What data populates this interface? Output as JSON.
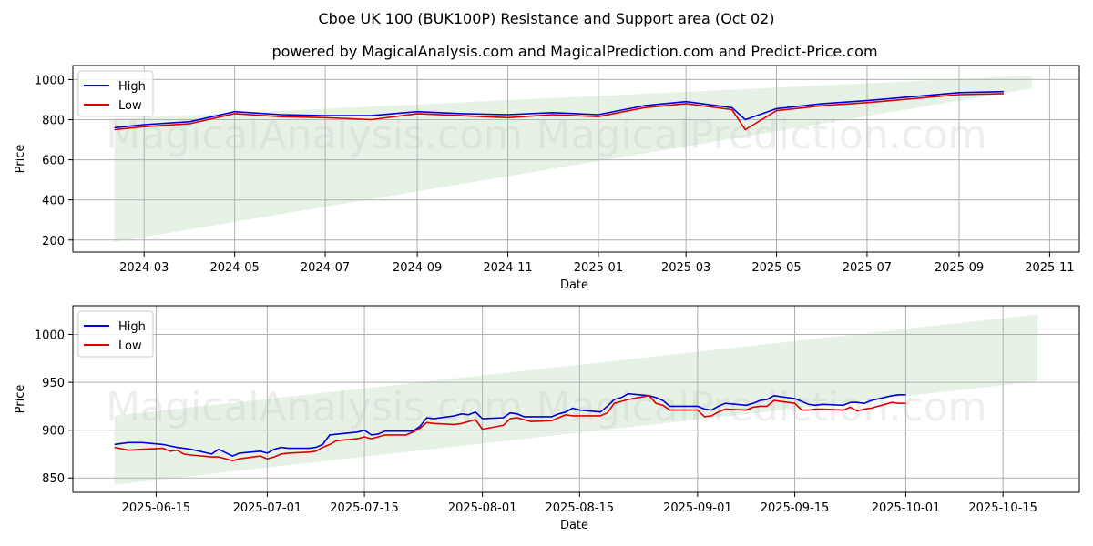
{
  "title": "Cboe UK 100 (BUK100P) Resistance and Support area (Oct 02)",
  "subtitle": "powered by MagicalAnalysis.com and MagicalPrediction.com and Predict-Price.com",
  "watermarks": [
    "MagicalAnalysis.com",
    "MagicalPrediction.com"
  ],
  "colors": {
    "high": "#0000dd",
    "low": "#dd0000",
    "band": "#e6f2e6"
  },
  "chart_data": [
    {
      "type": "line",
      "xlabel": "Date",
      "ylabel": "Price",
      "grid": true,
      "legend": "top-left",
      "x_ticks": [
        "2024-03",
        "2024-05",
        "2024-07",
        "2024-09",
        "2024-11",
        "2025-01",
        "2025-03",
        "2025-05",
        "2025-07",
        "2025-09",
        "2025-11"
      ],
      "y_ticks": [
        "200",
        "400",
        "600",
        "800",
        "1000"
      ],
      "ylim": [
        140,
        1070
      ],
      "band": {
        "x_start": "2024-02-10",
        "x_end": "2025-10-20",
        "lower": [
          190,
          955
        ],
        "upper": [
          805,
          1020
        ]
      },
      "series": [
        {
          "name": "High",
          "points": [
            [
              "2024-02-10",
              760
            ],
            [
              "2024-03-01",
              775
            ],
            [
              "2024-04-01",
              790
            ],
            [
              "2024-05-01",
              840
            ],
            [
              "2024-06-01",
              825
            ],
            [
              "2024-07-01",
              820
            ],
            [
              "2024-08-01",
              820
            ],
            [
              "2024-09-01",
              840
            ],
            [
              "2024-10-01",
              830
            ],
            [
              "2024-11-01",
              825
            ],
            [
              "2024-12-01",
              835
            ],
            [
              "2025-01-01",
              825
            ],
            [
              "2025-02-01",
              870
            ],
            [
              "2025-03-01",
              890
            ],
            [
              "2025-04-01",
              860
            ],
            [
              "2025-04-10",
              800
            ],
            [
              "2025-05-01",
              855
            ],
            [
              "2025-06-01",
              880
            ],
            [
              "2025-07-01",
              895
            ],
            [
              "2025-08-01",
              915
            ],
            [
              "2025-09-01",
              935
            ],
            [
              "2025-10-01",
              940
            ]
          ]
        },
        {
          "name": "Low",
          "points": [
            [
              "2024-02-10",
              750
            ],
            [
              "2024-03-01",
              765
            ],
            [
              "2024-04-01",
              780
            ],
            [
              "2024-05-01",
              830
            ],
            [
              "2024-06-01",
              815
            ],
            [
              "2024-07-01",
              810
            ],
            [
              "2024-08-01",
              800
            ],
            [
              "2024-09-01",
              830
            ],
            [
              "2024-10-01",
              820
            ],
            [
              "2024-11-01",
              810
            ],
            [
              "2024-12-01",
              825
            ],
            [
              "2025-01-01",
              815
            ],
            [
              "2025-02-01",
              860
            ],
            [
              "2025-03-01",
              880
            ],
            [
              "2025-04-01",
              850
            ],
            [
              "2025-04-10",
              750
            ],
            [
              "2025-05-01",
              845
            ],
            [
              "2025-06-01",
              870
            ],
            [
              "2025-07-01",
              885
            ],
            [
              "2025-08-01",
              905
            ],
            [
              "2025-09-01",
              925
            ],
            [
              "2025-10-01",
              930
            ]
          ]
        }
      ]
    },
    {
      "type": "line",
      "xlabel": "Date",
      "ylabel": "Price",
      "grid": true,
      "legend": "top-left",
      "x_ticks": [
        "2025-06-15",
        "2025-07-01",
        "2025-07-15",
        "2025-08-01",
        "2025-08-15",
        "2025-09-01",
        "2025-09-15",
        "2025-10-01",
        "2025-10-15"
      ],
      "y_ticks": [
        "850",
        "900",
        "950",
        "1000"
      ],
      "ylim": [
        835,
        1030
      ],
      "band": {
        "x_start": "2025-06-09",
        "x_end": "2025-10-20",
        "lower": [
          843,
          951
        ],
        "upper": [
          915,
          1021
        ]
      },
      "series": [
        {
          "name": "High",
          "points": [
            [
              "2025-06-09",
              885
            ],
            [
              "2025-06-11",
              887
            ],
            [
              "2025-06-13",
              887
            ],
            [
              "2025-06-16",
              885
            ],
            [
              "2025-06-18",
              882
            ],
            [
              "2025-06-20",
              880
            ],
            [
              "2025-06-23",
              875
            ],
            [
              "2025-06-24",
              880
            ],
            [
              "2025-06-26",
              873
            ],
            [
              "2025-06-27",
              876
            ],
            [
              "2025-06-30",
              878
            ],
            [
              "2025-07-01",
              876
            ],
            [
              "2025-07-02",
              880
            ],
            [
              "2025-07-03",
              882
            ],
            [
              "2025-07-04",
              881
            ],
            [
              "2025-07-07",
              881
            ],
            [
              "2025-07-08",
              882
            ],
            [
              "2025-07-09",
              885
            ],
            [
              "2025-07-10",
              895
            ],
            [
              "2025-07-14",
              898
            ],
            [
              "2025-07-15",
              900
            ],
            [
              "2025-07-16",
              895
            ],
            [
              "2025-07-17",
              896
            ],
            [
              "2025-07-18",
              899
            ],
            [
              "2025-07-21",
              899
            ],
            [
              "2025-07-22",
              899
            ],
            [
              "2025-07-23",
              904
            ],
            [
              "2025-07-24",
              913
            ],
            [
              "2025-07-25",
              912
            ],
            [
              "2025-07-28",
              915
            ],
            [
              "2025-07-29",
              917
            ],
            [
              "2025-07-30",
              916
            ],
            [
              "2025-07-31",
              919
            ],
            [
              "2025-08-01",
              912
            ],
            [
              "2025-08-04",
              913
            ],
            [
              "2025-08-05",
              918
            ],
            [
              "2025-08-06",
              917
            ],
            [
              "2025-08-07",
              914
            ],
            [
              "2025-08-08",
              914
            ],
            [
              "2025-08-11",
              914
            ],
            [
              "2025-08-12",
              917
            ],
            [
              "2025-08-13",
              919
            ],
            [
              "2025-08-14",
              923
            ],
            [
              "2025-08-15",
              921
            ],
            [
              "2025-08-18",
              919
            ],
            [
              "2025-08-19",
              925
            ],
            [
              "2025-08-20",
              932
            ],
            [
              "2025-08-21",
              934
            ],
            [
              "2025-08-22",
              938
            ],
            [
              "2025-08-25",
              936
            ],
            [
              "2025-08-26",
              934
            ],
            [
              "2025-08-27",
              931
            ],
            [
              "2025-08-28",
              925
            ],
            [
              "2025-08-29",
              925
            ],
            [
              "2025-09-01",
              925
            ],
            [
              "2025-09-02",
              922
            ],
            [
              "2025-09-03",
              921
            ],
            [
              "2025-09-04",
              925
            ],
            [
              "2025-09-05",
              928
            ],
            [
              "2025-09-08",
              926
            ],
            [
              "2025-09-09",
              928
            ],
            [
              "2025-09-10",
              931
            ],
            [
              "2025-09-11",
              932
            ],
            [
              "2025-09-12",
              936
            ],
            [
              "2025-09-15",
              933
            ],
            [
              "2025-09-16",
              930
            ],
            [
              "2025-09-17",
              927
            ],
            [
              "2025-09-18",
              926
            ],
            [
              "2025-09-19",
              927
            ],
            [
              "2025-09-22",
              926
            ],
            [
              "2025-09-23",
              929
            ],
            [
              "2025-09-24",
              929
            ],
            [
              "2025-09-25",
              928
            ],
            [
              "2025-09-26",
              931
            ],
            [
              "2025-09-29",
              936
            ],
            [
              "2025-09-30",
              937
            ],
            [
              "2025-10-01",
              937
            ]
          ]
        },
        {
          "name": "Low",
          "points": [
            [
              "2025-06-09",
              882
            ],
            [
              "2025-06-11",
              879
            ],
            [
              "2025-06-13",
              880
            ],
            [
              "2025-06-16",
              881
            ],
            [
              "2025-06-17",
              878
            ],
            [
              "2025-06-18",
              879
            ],
            [
              "2025-06-19",
              875
            ],
            [
              "2025-06-20",
              874
            ],
            [
              "2025-06-23",
              872
            ],
            [
              "2025-06-24",
              872
            ],
            [
              "2025-06-25",
              870
            ],
            [
              "2025-06-26",
              868
            ],
            [
              "2025-06-27",
              870
            ],
            [
              "2025-06-30",
              873
            ],
            [
              "2025-07-01",
              870
            ],
            [
              "2025-07-02",
              872
            ],
            [
              "2025-07-03",
              875
            ],
            [
              "2025-07-04",
              876
            ],
            [
              "2025-07-07",
              877
            ],
            [
              "2025-07-08",
              878
            ],
            [
              "2025-07-09",
              882
            ],
            [
              "2025-07-10",
              885
            ],
            [
              "2025-07-11",
              889
            ],
            [
              "2025-07-14",
              891
            ],
            [
              "2025-07-15",
              893
            ],
            [
              "2025-07-16",
              891
            ],
            [
              "2025-07-17",
              893
            ],
            [
              "2025-07-18",
              895
            ],
            [
              "2025-07-21",
              895
            ],
            [
              "2025-07-22",
              898
            ],
            [
              "2025-07-23",
              902
            ],
            [
              "2025-07-24",
              908
            ],
            [
              "2025-07-25",
              907
            ],
            [
              "2025-07-28",
              906
            ],
            [
              "2025-07-29",
              907
            ],
            [
              "2025-07-30",
              909
            ],
            [
              "2025-07-31",
              911
            ],
            [
              "2025-08-01",
              901
            ],
            [
              "2025-08-04",
              905
            ],
            [
              "2025-08-05",
              912
            ],
            [
              "2025-08-06",
              913
            ],
            [
              "2025-08-07",
              911
            ],
            [
              "2025-08-08",
              909
            ],
            [
              "2025-08-11",
              910
            ],
            [
              "2025-08-12",
              913
            ],
            [
              "2025-08-13",
              916
            ],
            [
              "2025-08-14",
              915
            ],
            [
              "2025-08-15",
              915
            ],
            [
              "2025-08-18",
              915
            ],
            [
              "2025-08-19",
              918
            ],
            [
              "2025-08-20",
              928
            ],
            [
              "2025-08-21",
              930
            ],
            [
              "2025-08-22",
              932
            ],
            [
              "2025-08-25",
              936
            ],
            [
              "2025-08-26",
              928
            ],
            [
              "2025-08-27",
              926
            ],
            [
              "2025-08-28",
              921
            ],
            [
              "2025-08-29",
              921
            ],
            [
              "2025-09-01",
              921
            ],
            [
              "2025-09-02",
              914
            ],
            [
              "2025-09-03",
              915
            ],
            [
              "2025-09-04",
              919
            ],
            [
              "2025-09-05",
              922
            ],
            [
              "2025-09-08",
              921
            ],
            [
              "2025-09-09",
              924
            ],
            [
              "2025-09-10",
              925
            ],
            [
              "2025-09-11",
              925
            ],
            [
              "2025-09-12",
              931
            ],
            [
              "2025-09-15",
              928
            ],
            [
              "2025-09-16",
              921
            ],
            [
              "2025-09-17",
              921
            ],
            [
              "2025-09-18",
              922
            ],
            [
              "2025-09-19",
              922
            ],
            [
              "2025-09-22",
              921
            ],
            [
              "2025-09-23",
              924
            ],
            [
              "2025-09-24",
              920
            ],
            [
              "2025-09-25",
              922
            ],
            [
              "2025-09-26",
              923
            ],
            [
              "2025-09-29",
              929
            ],
            [
              "2025-09-30",
              928
            ],
            [
              "2025-10-01",
              928
            ]
          ]
        }
      ]
    }
  ]
}
